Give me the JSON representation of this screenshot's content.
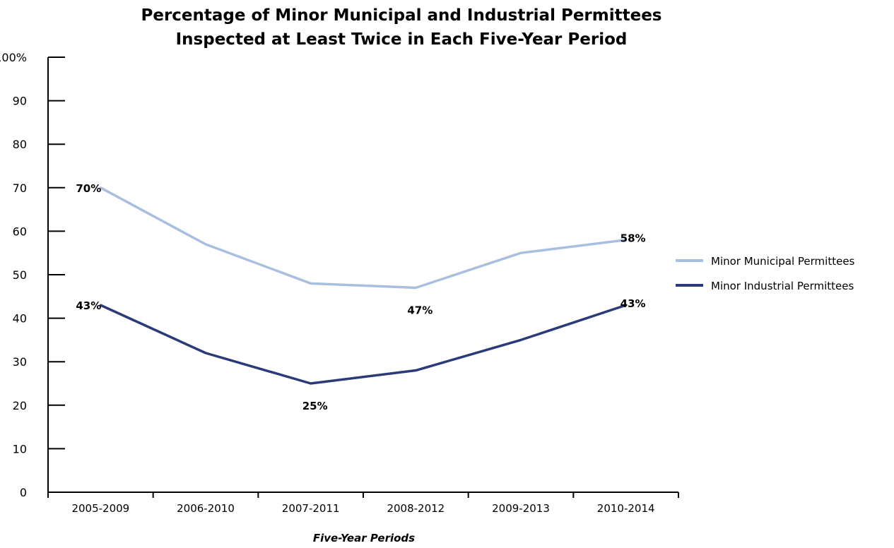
{
  "chart_data": {
    "type": "line",
    "title": "Percentage of Minor Municipal and Industrial Permittees",
    "subtitle": "Inspected at Least Twice in Each Five-Year Period",
    "xlabel": "Five-Year Periods",
    "ylabel": "",
    "ylim": [
      0,
      100
    ],
    "yticks": [
      "0",
      "10",
      "20",
      "30",
      "40",
      "50",
      "60",
      "70",
      "80",
      "90",
      "100%"
    ],
    "ytick_values": [
      0,
      10,
      20,
      30,
      40,
      50,
      60,
      70,
      80,
      90,
      100
    ],
    "categories": [
      "2005-2009",
      "2006-2010",
      "2007-2011",
      "2008-2012",
      "2009-2013",
      "2010-2014"
    ],
    "grid": false,
    "legend_position": "right",
    "series": [
      {
        "name": "Minor Municipal Permittees",
        "color": "#a9bfe0",
        "values": [
          70,
          57,
          48,
          47,
          55,
          58
        ],
        "labels": [
          "70%",
          null,
          null,
          "47%",
          null,
          "58%"
        ],
        "label_side": [
          "left",
          null,
          null,
          "below",
          null,
          "right"
        ]
      },
      {
        "name": "Minor Industrial Permittees",
        "color": "#2b3a78",
        "values": [
          43,
          32,
          25,
          28,
          35,
          43
        ],
        "labels": [
          "43%",
          null,
          "25%",
          null,
          null,
          "43%"
        ],
        "label_side": [
          "left",
          null,
          "below",
          null,
          null,
          "right"
        ]
      }
    ]
  }
}
